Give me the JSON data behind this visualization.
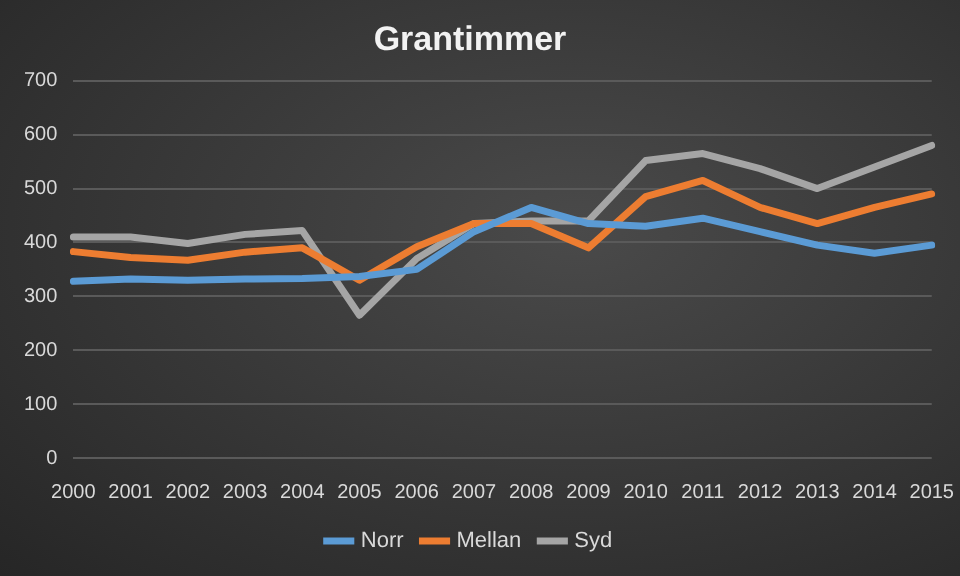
{
  "chart_data": {
    "type": "line",
    "title": "Grantimmer",
    "categories": [
      "2000",
      "2001",
      "2002",
      "2003",
      "2004",
      "2005",
      "2006",
      "2007",
      "2008",
      "2009",
      "2010",
      "2011",
      "2012",
      "2013",
      "2014",
      "2015"
    ],
    "series": [
      {
        "name": "Norr",
        "color": "#5b9bd5",
        "values": [
          328,
          332,
          330,
          332,
          333,
          337,
          350,
          420,
          465,
          435,
          430,
          445,
          420,
          395,
          380,
          395
        ]
      },
      {
        "name": "Mellan",
        "color": "#ed7d31",
        "values": [
          383,
          372,
          367,
          382,
          390,
          330,
          392,
          435,
          435,
          390,
          485,
          515,
          465,
          435,
          465,
          490
        ]
      },
      {
        "name": "Syd",
        "color": "#a5a5a5",
        "values": [
          410,
          410,
          398,
          415,
          422,
          265,
          370,
          435,
          440,
          440,
          552,
          565,
          537,
          500,
          540,
          580
        ]
      }
    ],
    "ylim": [
      0,
      700
    ],
    "yticks": [
      0,
      100,
      200,
      300,
      400,
      500,
      600,
      700
    ],
    "grid": "y",
    "legend": "bottom",
    "marker": "none",
    "line_style": "solid"
  }
}
